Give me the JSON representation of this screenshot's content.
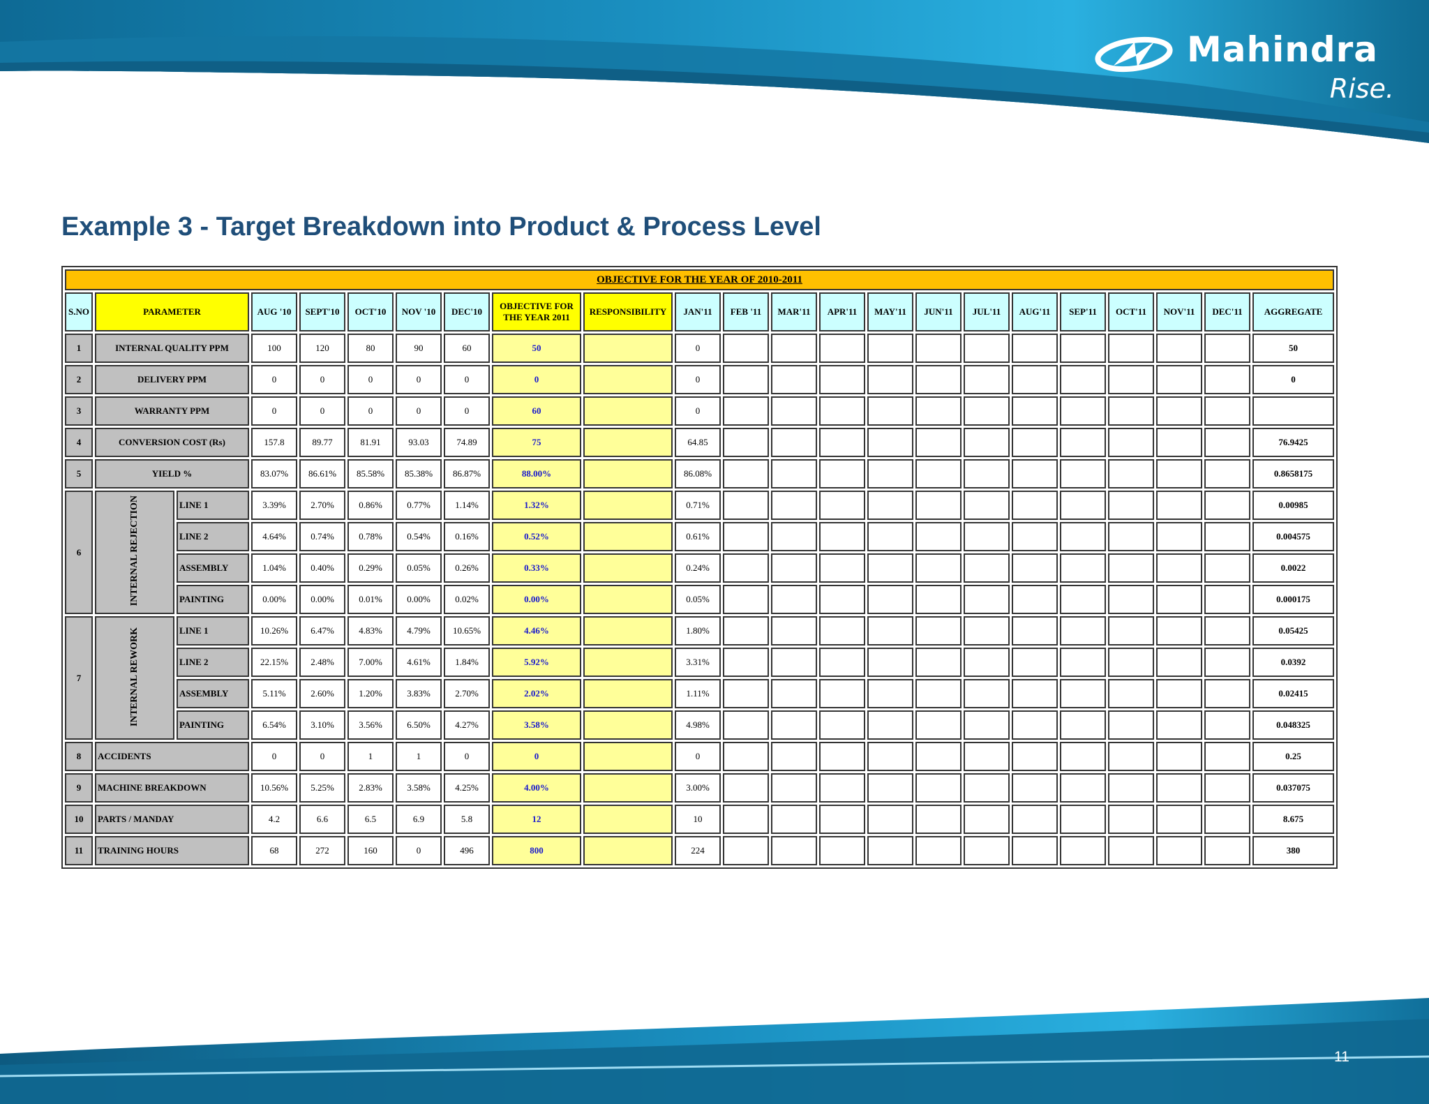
{
  "brand": {
    "name": "Mahindra",
    "tagline": "Rise."
  },
  "title": "Example 3 - Target Breakdown into Product & Process Level",
  "page_number": "11",
  "colors": {
    "title": "#1f4e79",
    "banner": "#ffc000",
    "header": "#ccffff",
    "highlight": "#ffff00",
    "objective_cell": "#ffff99",
    "objective_text": "#1a1acd",
    "param_cell": "#c0c0c0",
    "wave": "#1a8fc0"
  },
  "table": {
    "banner": "OBJECTIVE FOR THE YEAR OF 2010-2011",
    "headers": {
      "sno": "S.NO",
      "parameter": "PARAMETER",
      "past": [
        "AUG '10",
        "SEPT'10",
        "OCT'10",
        "NOV '10",
        "DEC'10"
      ],
      "objective": "OBJECTIVE FOR THE YEAR 2011",
      "responsibility": "RESPONSIBILITY",
      "months": [
        "JAN'11",
        "FEB '11",
        "MAR'11",
        "APR'11",
        "MAY'11",
        "JUN'11",
        "JUL'11",
        "AUG'11",
        "SEP'11",
        "OCT'11",
        "NOV'11",
        "DEC'11"
      ],
      "aggregate": "AGGREGATE"
    },
    "rows": [
      {
        "sno": "1",
        "param": "INTERNAL QUALITY PPM",
        "past": [
          "100",
          "120",
          "80",
          "90",
          "60"
        ],
        "objective": "50",
        "jan": "0",
        "aggregate": "50"
      },
      {
        "sno": "2",
        "param": "DELIVERY PPM",
        "past": [
          "0",
          "0",
          "0",
          "0",
          "0"
        ],
        "objective": "0",
        "jan": "0",
        "aggregate": "0"
      },
      {
        "sno": "3",
        "param": "WARRANTY PPM",
        "past": [
          "0",
          "0",
          "0",
          "0",
          "0"
        ],
        "objective": "60",
        "jan": "0",
        "aggregate": ""
      },
      {
        "sno": "4",
        "param": "CONVERSION COST (Rs)",
        "past": [
          "157.8",
          "89.77",
          "81.91",
          "93.03",
          "74.89"
        ],
        "objective": "75",
        "jan": "64.85",
        "aggregate": "76.9425"
      },
      {
        "sno": "5",
        "param": "YIELD %",
        "past": [
          "83.07%",
          "86.61%",
          "85.58%",
          "85.38%",
          "86.87%"
        ],
        "objective": "88.00%",
        "jan": "86.08%",
        "aggregate": "0.8658175"
      }
    ],
    "groups": [
      {
        "sno": "6",
        "label": "INTERNAL REJECTION",
        "rows": [
          {
            "param": "LINE 1",
            "past": [
              "3.39%",
              "2.70%",
              "0.86%",
              "0.77%",
              "1.14%"
            ],
            "objective": "1.32%",
            "jan": "0.71%",
            "aggregate": "0.00985"
          },
          {
            "param": "LINE 2",
            "past": [
              "4.64%",
              "0.74%",
              "0.78%",
              "0.54%",
              "0.16%"
            ],
            "objective": "0.52%",
            "jan": "0.61%",
            "aggregate": "0.004575"
          },
          {
            "param": "ASSEMBLY",
            "past": [
              "1.04%",
              "0.40%",
              "0.29%",
              "0.05%",
              "0.26%"
            ],
            "objective": "0.33%",
            "jan": "0.24%",
            "aggregate": "0.0022"
          },
          {
            "param": "PAINTING",
            "past": [
              "0.00%",
              "0.00%",
              "0.01%",
              "0.00%",
              "0.02%"
            ],
            "objective": "0.00%",
            "jan": "0.05%",
            "aggregate": "0.000175"
          }
        ]
      },
      {
        "sno": "7",
        "label": "INTERNAL REWORK",
        "rows": [
          {
            "param": "LINE 1",
            "past": [
              "10.26%",
              "6.47%",
              "4.83%",
              "4.79%",
              "10.65%"
            ],
            "objective": "4.46%",
            "jan": "1.80%",
            "aggregate": "0.05425"
          },
          {
            "param": "LINE 2",
            "past": [
              "22.15%",
              "2.48%",
              "7.00%",
              "4.61%",
              "1.84%"
            ],
            "objective": "5.92%",
            "jan": "3.31%",
            "aggregate": "0.0392"
          },
          {
            "param": "ASSEMBLY",
            "past": [
              "5.11%",
              "2.60%",
              "1.20%",
              "3.83%",
              "2.70%"
            ],
            "objective": "2.02%",
            "jan": "1.11%",
            "aggregate": "0.02415"
          },
          {
            "param": "PAINTING",
            "past": [
              "6.54%",
              "3.10%",
              "3.56%",
              "6.50%",
              "4.27%"
            ],
            "objective": "3.58%",
            "jan": "4.98%",
            "aggregate": "0.048325"
          }
        ]
      }
    ],
    "tail_rows": [
      {
        "sno": "8",
        "param": "ACCIDENTS",
        "past": [
          "0",
          "0",
          "1",
          "1",
          "0"
        ],
        "objective": "0",
        "jan": "0",
        "aggregate": "0.25"
      },
      {
        "sno": "9",
        "param": "MACHINE BREAKDOWN",
        "past": [
          "10.56%",
          "5.25%",
          "2.83%",
          "3.58%",
          "4.25%"
        ],
        "objective": "4.00%",
        "jan": "3.00%",
        "aggregate": "0.037075"
      },
      {
        "sno": "10",
        "param": "PARTS / MANDAY",
        "past": [
          "4.2",
          "6.6",
          "6.5",
          "6.9",
          "5.8"
        ],
        "objective": "12",
        "jan": "10",
        "aggregate": "8.675"
      },
      {
        "sno": "11",
        "param": "TRAINING HOURS",
        "past": [
          "68",
          "272",
          "160",
          "0",
          "496"
        ],
        "objective": "800",
        "jan": "224",
        "aggregate": "380"
      }
    ]
  }
}
